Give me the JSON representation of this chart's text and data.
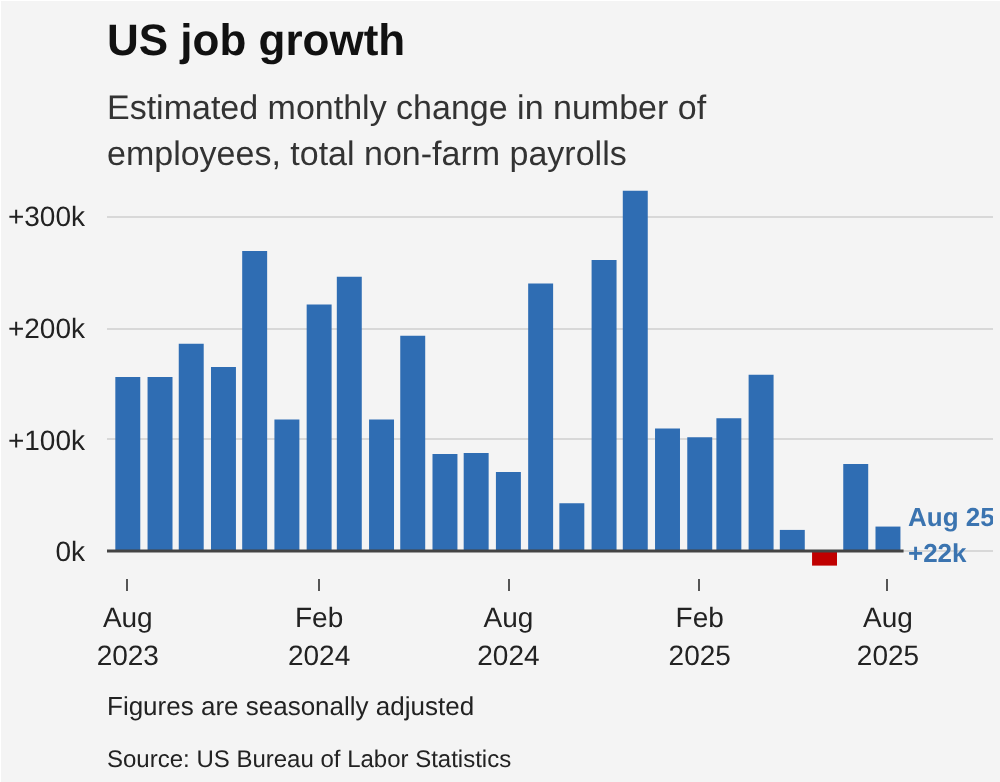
{
  "chart_data": {
    "type": "bar",
    "title": "US job growth",
    "subtitle": "Estimated monthly change in number of employees, total non-farm payrolls",
    "x": [
      "2023-08",
      "2023-09",
      "2023-10",
      "2023-11",
      "2023-12",
      "2024-01",
      "2024-02",
      "2024-03",
      "2024-04",
      "2024-05",
      "2024-06",
      "2024-07",
      "2024-08",
      "2024-09",
      "2024-10",
      "2024-11",
      "2024-12",
      "2025-01",
      "2025-02",
      "2025-03",
      "2025-04",
      "2025-05",
      "2025-06",
      "2025-07",
      "2025-08"
    ],
    "values": [
      156,
      156,
      186,
      165,
      269,
      118,
      221,
      246,
      118,
      193,
      87,
      88,
      71,
      240,
      43,
      261,
      323,
      110,
      102,
      119,
      158,
      19,
      -13,
      78,
      22
    ],
    "colors": [
      "#2f6db3",
      "#2f6db3",
      "#2f6db3",
      "#2f6db3",
      "#2f6db3",
      "#2f6db3",
      "#2f6db3",
      "#2f6db3",
      "#2f6db3",
      "#2f6db3",
      "#2f6db3",
      "#2f6db3",
      "#2f6db3",
      "#2f6db3",
      "#2f6db3",
      "#2f6db3",
      "#2f6db3",
      "#2f6db3",
      "#2f6db3",
      "#2f6db3",
      "#2f6db3",
      "#2f6db3",
      "#c00000",
      "#2f6db3",
      "#2f6db3"
    ],
    "xlim": [
      "2023-07-12",
      "2025-11-10"
    ],
    "ylim": [
      -25,
      330
    ],
    "yticks": [
      {
        "value": 0,
        "label": "0k"
      },
      {
        "value": 100,
        "label": "+100k"
      },
      {
        "value": 200,
        "label": "+200k"
      },
      {
        "value": 300,
        "label": "+300k"
      }
    ],
    "xticks": [
      {
        "value": "2023-08",
        "label": "Aug\n2023"
      },
      {
        "value": "2024-02",
        "label": "Feb\n2024"
      },
      {
        "value": "2024-08",
        "label": "Aug\n2024"
      },
      {
        "value": "2025-02",
        "label": "Feb\n2025"
      },
      {
        "value": "2025-08",
        "label": "Aug\n2025"
      }
    ],
    "grid": "y",
    "annotations": [
      {
        "text": "Aug 25\n+22k",
        "x": "2025-08",
        "y": 22
      },
      "Figures are seasonally adjusted",
      "Source: US Bureau of Labor Statistics"
    ]
  }
}
